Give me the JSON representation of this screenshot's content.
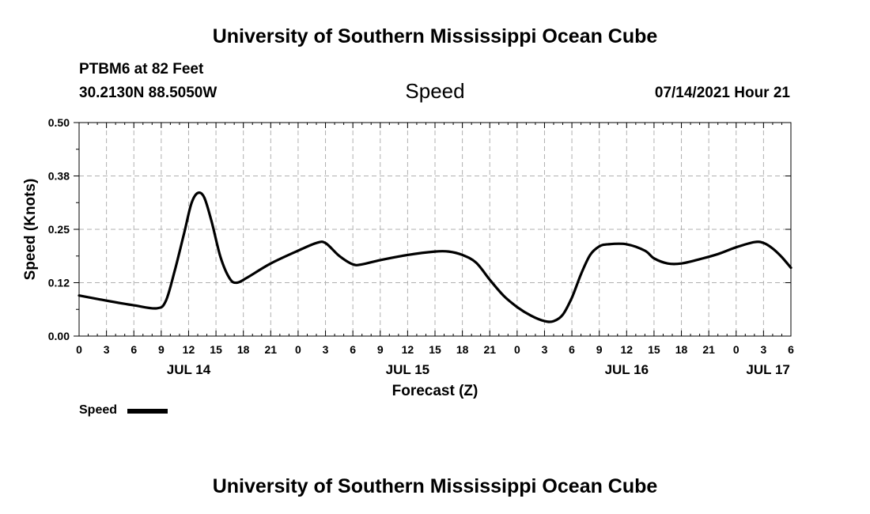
{
  "header": {
    "title": "University of Southern Mississippi Ocean Cube",
    "station": "PTBM6 at 82 Feet",
    "coords": "30.2130N  88.5050W",
    "timestamp": "07/14/2021 Hour 21"
  },
  "footer": {
    "title": "University of Southern Mississippi Ocean Cube"
  },
  "legend": {
    "label": "Speed"
  },
  "colors": {
    "line": "#000000",
    "grid": "#b0b0b0"
  },
  "chart_data": {
    "type": "line",
    "title": "Speed",
    "xlabel": "Forecast (Z)",
    "ylabel": "Speed (Knots)",
    "ylim": [
      0,
      0.5
    ],
    "xlim": [
      0,
      78
    ],
    "x_unit": "hours since 07/14/2021 00Z",
    "y_ticks": [
      {
        "value": 0.0,
        "label": "0.00"
      },
      {
        "value": 0.125,
        "label": "0.12"
      },
      {
        "value": 0.25,
        "label": "0.25"
      },
      {
        "value": 0.375,
        "label": "0.38"
      },
      {
        "value": 0.5,
        "label": "0.50"
      }
    ],
    "x_ticks": [
      {
        "value": 0,
        "label": "0"
      },
      {
        "value": 3,
        "label": "3"
      },
      {
        "value": 6,
        "label": "6"
      },
      {
        "value": 9,
        "label": "9"
      },
      {
        "value": 12,
        "label": "12"
      },
      {
        "value": 15,
        "label": "15"
      },
      {
        "value": 18,
        "label": "18"
      },
      {
        "value": 21,
        "label": "21"
      },
      {
        "value": 24,
        "label": "0"
      },
      {
        "value": 27,
        "label": "3"
      },
      {
        "value": 30,
        "label": "6"
      },
      {
        "value": 33,
        "label": "9"
      },
      {
        "value": 36,
        "label": "12"
      },
      {
        "value": 39,
        "label": "15"
      },
      {
        "value": 42,
        "label": "18"
      },
      {
        "value": 45,
        "label": "21"
      },
      {
        "value": 48,
        "label": "0"
      },
      {
        "value": 51,
        "label": "3"
      },
      {
        "value": 54,
        "label": "6"
      },
      {
        "value": 57,
        "label": "9"
      },
      {
        "value": 60,
        "label": "12"
      },
      {
        "value": 63,
        "label": "15"
      },
      {
        "value": 66,
        "label": "18"
      },
      {
        "value": 69,
        "label": "21"
      },
      {
        "value": 72,
        "label": "0"
      },
      {
        "value": 75,
        "label": "3"
      },
      {
        "value": 78,
        "label": "6"
      }
    ],
    "date_labels": [
      {
        "value": 12,
        "label": "JUL 14"
      },
      {
        "value": 36,
        "label": "JUL 15"
      },
      {
        "value": 60,
        "label": "JUL 16"
      },
      {
        "value": 75.5,
        "label": "JUL 17"
      }
    ],
    "grid": true,
    "series": [
      {
        "name": "Speed",
        "x": [
          0,
          3,
          6,
          8.5,
          9.5,
          10.5,
          11.5,
          12.3,
          13,
          13.7,
          14.5,
          15.5,
          16.5,
          17.3,
          18.5,
          21,
          24,
          26,
          27,
          28.5,
          30,
          31,
          33,
          36,
          39,
          40.5,
          42,
          43.5,
          45,
          46.5,
          48,
          49.5,
          51,
          52,
          53,
          54,
          55,
          56,
          57,
          58,
          60,
          62,
          63,
          64.5,
          66,
          68,
          70,
          72,
          74,
          75,
          76,
          77,
          78
        ],
        "y": [
          0.095,
          0.083,
          0.072,
          0.065,
          0.082,
          0.155,
          0.24,
          0.31,
          0.335,
          0.325,
          0.27,
          0.185,
          0.135,
          0.125,
          0.138,
          0.17,
          0.2,
          0.218,
          0.218,
          0.188,
          0.168,
          0.168,
          0.178,
          0.19,
          0.198,
          0.198,
          0.19,
          0.172,
          0.132,
          0.095,
          0.068,
          0.048,
          0.035,
          0.035,
          0.05,
          0.09,
          0.145,
          0.19,
          0.21,
          0.215,
          0.215,
          0.2,
          0.182,
          0.17,
          0.17,
          0.18,
          0.192,
          0.208,
          0.22,
          0.218,
          0.205,
          0.185,
          0.16
        ]
      }
    ]
  }
}
